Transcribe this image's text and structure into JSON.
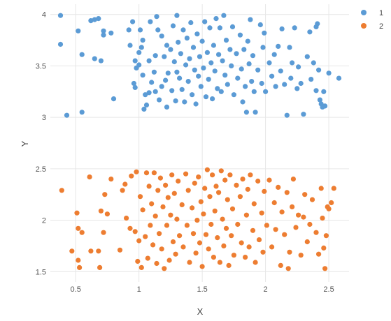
{
  "chart_data": {
    "type": "scatter",
    "xlabel": "X",
    "ylabel": "Y",
    "xlim": [
      0.3,
      2.66
    ],
    "ylim": [
      1.4,
      4.1
    ],
    "x_ticks": [
      0.5,
      1,
      1.5,
      2,
      2.5
    ],
    "x_tick_labels": [
      "0.5",
      "1",
      "1.5",
      "2",
      "2.5"
    ],
    "y_ticks": [
      1.5,
      2,
      2.5,
      3,
      3.5,
      4
    ],
    "y_tick_labels": [
      "1.5",
      "2",
      "2.5",
      "3",
      "3.5",
      "4"
    ],
    "grid": true,
    "legend_position": "top-right",
    "series": [
      {
        "name": "1",
        "color": "#5b9bd5",
        "points": [
          [
            0.38,
            3.99
          ],
          [
            0.38,
            3.71
          ],
          [
            0.43,
            3.02
          ],
          [
            0.52,
            3.84
          ],
          [
            0.55,
            3.61
          ],
          [
            0.55,
            3.05
          ],
          [
            0.62,
            3.94
          ],
          [
            0.65,
            3.95
          ],
          [
            0.65,
            3.57
          ],
          [
            0.68,
            3.96
          ],
          [
            0.7,
            3.55
          ],
          [
            0.72,
            3.84
          ],
          [
            0.72,
            3.8
          ],
          [
            0.78,
            3.82
          ],
          [
            0.8,
            3.18
          ],
          [
            0.92,
            3.85
          ],
          [
            0.93,
            3.7
          ],
          [
            0.95,
            3.93
          ],
          [
            0.96,
            3.33
          ],
          [
            0.97,
            3.29
          ],
          [
            0.97,
            3.55
          ],
          [
            0.98,
            3.48
          ],
          [
            1.0,
            3.63
          ],
          [
            1.0,
            3.51
          ],
          [
            1.01,
            3.85
          ],
          [
            1.02,
            3.68
          ],
          [
            1.03,
            3.75
          ],
          [
            1.03,
            3.41
          ],
          [
            1.04,
            3.08
          ],
          [
            1.05,
            3.22
          ],
          [
            1.06,
            3.12
          ],
          [
            1.08,
            3.55
          ],
          [
            1.08,
            3.24
          ],
          [
            1.09,
            3.93
          ],
          [
            1.1,
            3.34
          ],
          [
            1.12,
            3.44
          ],
          [
            1.13,
            3.6
          ],
          [
            1.13,
            3.25
          ],
          [
            1.14,
            3.98
          ],
          [
            1.15,
            3.85
          ],
          [
            1.16,
            3.17
          ],
          [
            1.18,
            3.3
          ],
          [
            1.18,
            3.79
          ],
          [
            1.2,
            3.59
          ],
          [
            1.21,
            3.36
          ],
          [
            1.22,
            3.1
          ],
          [
            1.22,
            3.7
          ],
          [
            1.23,
            3.43
          ],
          [
            1.25,
            3.66
          ],
          [
            1.26,
            3.26
          ],
          [
            1.27,
            3.89
          ],
          [
            1.28,
            3.54
          ],
          [
            1.29,
            3.16
          ],
          [
            1.3,
            3.99
          ],
          [
            1.3,
            3.44
          ],
          [
            1.31,
            3.73
          ],
          [
            1.32,
            3.38
          ],
          [
            1.33,
            3.62
          ],
          [
            1.34,
            3.27
          ],
          [
            1.35,
            3.85
          ],
          [
            1.36,
            3.15
          ],
          [
            1.37,
            3.51
          ],
          [
            1.38,
            3.77
          ],
          [
            1.39,
            3.35
          ],
          [
            1.4,
            3.57
          ],
          [
            1.41,
            3.92
          ],
          [
            1.42,
            3.22
          ],
          [
            1.43,
            3.68
          ],
          [
            1.44,
            3.46
          ],
          [
            1.45,
            3.13
          ],
          [
            1.46,
            3.81
          ],
          [
            1.47,
            3.4
          ],
          [
            1.48,
            3.59
          ],
          [
            1.49,
            3.3
          ],
          [
            1.5,
            3.74
          ],
          [
            1.51,
            3.48
          ],
          [
            1.52,
            3.93
          ],
          [
            1.53,
            3.2
          ],
          [
            1.54,
            3.63
          ],
          [
            1.55,
            3.37
          ],
          [
            1.56,
            3.87
          ],
          [
            1.57,
            3.53
          ],
          [
            1.58,
            3.18
          ],
          [
            1.59,
            3.7
          ],
          [
            1.6,
            3.45
          ],
          [
            1.61,
            3.96
          ],
          [
            1.62,
            3.28
          ],
          [
            1.63,
            3.61
          ],
          [
            1.64,
            3.87
          ],
          [
            1.65,
            3.25
          ],
          [
            1.66,
            3.55
          ],
          [
            1.67,
            3.99
          ],
          [
            1.68,
            3.41
          ],
          [
            1.69,
            3.75
          ],
          [
            1.7,
            3.32
          ],
          [
            1.72,
            3.66
          ],
          [
            1.73,
            3.5
          ],
          [
            1.74,
            3.88
          ],
          [
            1.75,
            3.22
          ],
          [
            1.77,
            3.62
          ],
          [
            1.78,
            3.38
          ],
          [
            1.8,
            3.8
          ],
          [
            1.81,
            3.47
          ],
          [
            1.82,
            3.15
          ],
          [
            1.83,
            3.66
          ],
          [
            1.84,
            3.3
          ],
          [
            1.85,
            3.05
          ],
          [
            1.86,
            3.74
          ],
          [
            1.87,
            3.52
          ],
          [
            1.88,
            3.95
          ],
          [
            1.89,
            3.35
          ],
          [
            1.9,
            3.6
          ],
          [
            1.91,
            3.25
          ],
          [
            1.92,
            3.05
          ],
          [
            1.94,
            3.46
          ],
          [
            1.96,
            3.9
          ],
          [
            1.97,
            3.33
          ],
          [
            1.98,
            3.68
          ],
          [
            1.99,
            3.82
          ],
          [
            2.0,
            3.25
          ],
          [
            2.03,
            3.53
          ],
          [
            2.05,
            3.4
          ],
          [
            2.07,
            3.61
          ],
          [
            2.08,
            3.3
          ],
          [
            2.1,
            3.69
          ],
          [
            2.12,
            3.45
          ],
          [
            2.13,
            3.86
          ],
          [
            2.15,
            3.32
          ],
          [
            2.17,
            3.02
          ],
          [
            2.19,
            3.68
          ],
          [
            2.2,
            3.38
          ],
          [
            2.21,
            3.53
          ],
          [
            2.23,
            3.87
          ],
          [
            2.25,
            3.28
          ],
          [
            2.26,
            3.49
          ],
          [
            2.28,
            3.33
          ],
          [
            2.3,
            3.03
          ],
          [
            2.33,
            3.59
          ],
          [
            2.35,
            3.83
          ],
          [
            2.36,
            3.37
          ],
          [
            2.38,
            3.53
          ],
          [
            2.4,
            3.88
          ],
          [
            2.4,
            3.26
          ],
          [
            2.41,
            3.91
          ],
          [
            2.42,
            3.46
          ],
          [
            2.43,
            3.17
          ],
          [
            2.44,
            3.13
          ],
          [
            2.45,
            3.1
          ],
          [
            2.46,
            3.25
          ],
          [
            2.47,
            3.11
          ],
          [
            2.5,
            3.43
          ],
          [
            2.58,
            3.38
          ]
        ]
      },
      {
        "name": "2",
        "color": "#ed7d31",
        "points": [
          [
            0.39,
            2.29
          ],
          [
            0.47,
            1.7
          ],
          [
            0.51,
            2.07
          ],
          [
            0.52,
            1.92
          ],
          [
            0.52,
            1.61
          ],
          [
            0.53,
            1.54
          ],
          [
            0.55,
            1.88
          ],
          [
            0.61,
            2.42
          ],
          [
            0.62,
            1.7
          ],
          [
            0.68,
            1.7
          ],
          [
            0.69,
            1.54
          ],
          [
            0.7,
            2.09
          ],
          [
            0.72,
            1.88
          ],
          [
            0.73,
            2.25
          ],
          [
            0.75,
            2.06
          ],
          [
            0.78,
            2.4
          ],
          [
            0.85,
            1.71
          ],
          [
            0.87,
            2.29
          ],
          [
            0.89,
            2.35
          ],
          [
            0.9,
            2.02
          ],
          [
            0.93,
            1.92
          ],
          [
            0.94,
            2.43
          ],
          [
            0.97,
            1.89
          ],
          [
            0.98,
            2.47
          ],
          [
            0.99,
            1.6
          ],
          [
            1.0,
            1.8
          ],
          [
            1.01,
            2.23
          ],
          [
            1.02,
            1.54
          ],
          [
            1.03,
            2.1
          ],
          [
            1.05,
            1.84
          ],
          [
            1.06,
            2.46
          ],
          [
            1.07,
            1.63
          ],
          [
            1.08,
            2.33
          ],
          [
            1.09,
            1.95
          ],
          [
            1.1,
            2.16
          ],
          [
            1.11,
            1.76
          ],
          [
            1.12,
            2.46
          ],
          [
            1.13,
            2.04
          ],
          [
            1.14,
            1.58
          ],
          [
            1.15,
            2.29
          ],
          [
            1.16,
            1.87
          ],
          [
            1.17,
            2.41
          ],
          [
            1.18,
            1.72
          ],
          [
            1.19,
            2.13
          ],
          [
            1.2,
            1.53
          ],
          [
            1.21,
            2.34
          ],
          [
            1.22,
            1.95
          ],
          [
            1.23,
            2.22
          ],
          [
            1.24,
            1.61
          ],
          [
            1.25,
            2.05
          ],
          [
            1.26,
            2.44
          ],
          [
            1.27,
            1.79
          ],
          [
            1.28,
            2.26
          ],
          [
            1.29,
            1.67
          ],
          [
            1.3,
            2.01
          ],
          [
            1.31,
            2.38
          ],
          [
            1.32,
            1.85
          ],
          [
            1.34,
            2.15
          ],
          [
            1.35,
            1.74
          ],
          [
            1.37,
            2.45
          ],
          [
            1.38,
            1.95
          ],
          [
            1.39,
            2.29
          ],
          [
            1.4,
            1.59
          ],
          [
            1.42,
            2.12
          ],
          [
            1.43,
            1.87
          ],
          [
            1.44,
            2.36
          ],
          [
            1.45,
            1.68
          ],
          [
            1.46,
            2.0
          ],
          [
            1.47,
            2.42
          ],
          [
            1.48,
            1.78
          ],
          [
            1.49,
            2.18
          ],
          [
            1.5,
            1.55
          ],
          [
            1.51,
            2.06
          ],
          [
            1.52,
            2.31
          ],
          [
            1.53,
            1.86
          ],
          [
            1.54,
            2.49
          ],
          [
            1.55,
            1.72
          ],
          [
            1.56,
            2.23
          ],
          [
            1.57,
            1.96
          ],
          [
            1.58,
            2.44
          ],
          [
            1.59,
            1.64
          ],
          [
            1.6,
            2.09
          ],
          [
            1.61,
            2.33
          ],
          [
            1.62,
            1.83
          ],
          [
            1.63,
            2.27
          ],
          [
            1.64,
            1.59
          ],
          [
            1.65,
            2.48
          ],
          [
            1.66,
            2.01
          ],
          [
            1.67,
            1.75
          ],
          [
            1.68,
            2.39
          ],
          [
            1.69,
            1.92
          ],
          [
            1.7,
            2.2
          ],
          [
            1.71,
            1.56
          ],
          [
            1.72,
            2.44
          ],
          [
            1.73,
            1.85
          ],
          [
            1.74,
            2.11
          ],
          [
            1.75,
            1.66
          ],
          [
            1.77,
            2.34
          ],
          [
            1.78,
            1.96
          ],
          [
            1.8,
            2.23
          ],
          [
            1.81,
            1.78
          ],
          [
            1.82,
            2.4
          ],
          [
            1.84,
            1.64
          ],
          [
            1.85,
            2.05
          ],
          [
            1.86,
            2.3
          ],
          [
            1.87,
            1.74
          ],
          [
            1.88,
            2.44
          ],
          [
            1.9,
            1.9
          ],
          [
            1.91,
            2.16
          ],
          [
            1.92,
            1.59
          ],
          [
            1.94,
            2.38
          ],
          [
            1.95,
            1.81
          ],
          [
            1.97,
            2.07
          ],
          [
            1.98,
            1.69
          ],
          [
            1.99,
            2.28
          ],
          [
            2.01,
            1.95
          ],
          [
            2.03,
            2.39
          ],
          [
            2.05,
            1.74
          ],
          [
            2.07,
            2.17
          ],
          [
            2.08,
            1.91
          ],
          [
            2.1,
            2.32
          ],
          [
            2.12,
            1.56
          ],
          [
            2.13,
            2.08
          ],
          [
            2.15,
            1.86
          ],
          [
            2.17,
            2.27
          ],
          [
            2.18,
            1.53
          ],
          [
            2.19,
            1.69
          ],
          [
            2.21,
            2.13
          ],
          [
            2.22,
            2.4
          ],
          [
            2.24,
            1.93
          ],
          [
            2.26,
            2.05
          ],
          [
            2.28,
            1.66
          ],
          [
            2.3,
            2.03
          ],
          [
            2.31,
            2.25
          ],
          [
            2.33,
            1.79
          ],
          [
            2.35,
            1.96
          ],
          [
            2.37,
            2.2
          ],
          [
            2.4,
            1.88
          ],
          [
            2.42,
            1.67
          ],
          [
            2.44,
            2.31
          ],
          [
            2.45,
            2.02
          ],
          [
            2.46,
            1.73
          ],
          [
            2.47,
            1.53
          ],
          [
            2.48,
            1.85
          ],
          [
            2.49,
            2.13
          ],
          [
            2.5,
            2.11
          ],
          [
            2.52,
            2.17
          ],
          [
            2.54,
            2.31
          ]
        ]
      }
    ]
  }
}
